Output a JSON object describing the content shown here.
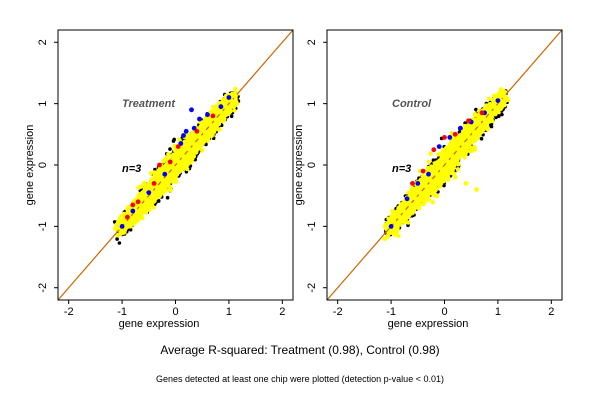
{
  "figure": {
    "caption": "Average R-squared: Treatment (0.98), Control (0.98)",
    "subcaption": "Genes detected at least one chip were plotted (detection p-value < 0.01)"
  },
  "colors": {
    "point_main": "#ffff00",
    "point_high": "#0000ff",
    "point_mid": "#ff0000",
    "point_low": "#000000",
    "diagonal": "#cc6600",
    "frame": "#000000",
    "panel_label": "#555555"
  },
  "chart_data": [
    {
      "type": "scatter",
      "title": "Treatment",
      "annotation": "n=3",
      "xlabel": "gene expression",
      "ylabel": "gene expression",
      "xlim": [
        -2.2,
        2.2
      ],
      "ylim": [
        -2.2,
        2.2
      ],
      "xticks": [
        "-2",
        "-1",
        "0",
        "1",
        "2"
      ],
      "yticks": [
        "-2",
        "-1",
        "0",
        "1",
        "2"
      ],
      "reference_line": {
        "slope": 1,
        "intercept": 0
      },
      "series": [
        {
          "color": "#ffff00",
          "x": [
            -1.05,
            -0.95,
            -0.85,
            -0.75,
            -0.65,
            -0.55,
            -0.45,
            -0.35,
            -0.25,
            -0.15,
            -0.05,
            0.05,
            0.15,
            0.25,
            0.35,
            0.45,
            0.55,
            0.65,
            0.75,
            0.85,
            0.95,
            1.05,
            1.12
          ],
          "y": [
            -1.02,
            -0.93,
            -0.86,
            -0.74,
            -0.66,
            -0.56,
            -0.44,
            -0.36,
            -0.24,
            -0.16,
            -0.04,
            0.06,
            0.14,
            0.26,
            0.34,
            0.46,
            0.54,
            0.66,
            0.74,
            0.86,
            0.94,
            1.04,
            1.12
          ]
        },
        {
          "color": "#0000ff",
          "x": [
            -1.0,
            -0.8,
            -0.5,
            -0.2,
            0.1,
            0.2,
            0.35,
            0.45,
            0.6,
            0.85,
            1.0,
            0.3,
            0.15
          ],
          "y": [
            -1.0,
            -0.75,
            -0.45,
            -0.15,
            0.35,
            0.55,
            0.6,
            0.75,
            0.82,
            0.95,
            1.1,
            0.9,
            0.48
          ]
        },
        {
          "color": "#ff0000",
          "x": [
            -0.9,
            -0.7,
            -0.4,
            -0.1,
            0.05,
            -0.3,
            0.4,
            0.7,
            -0.8
          ],
          "y": [
            -0.85,
            -0.6,
            -0.3,
            0.05,
            0.3,
            0.0,
            0.55,
            0.8,
            -0.65
          ]
        }
      ]
    },
    {
      "type": "scatter",
      "title": "Control",
      "annotation": "n=3",
      "xlabel": "gene expression",
      "ylabel": "gene expression",
      "xlim": [
        -2.2,
        2.2
      ],
      "ylim": [
        -2.2,
        2.2
      ],
      "xticks": [
        "-2",
        "-1",
        "0",
        "1",
        "2"
      ],
      "yticks": [
        "-2",
        "-1",
        "0",
        "1",
        "2"
      ],
      "reference_line": {
        "slope": 1,
        "intercept": 0
      },
      "series": [
        {
          "color": "#ffff00",
          "x": [
            -1.05,
            -0.95,
            -0.85,
            -0.75,
            -0.65,
            -0.55,
            -0.45,
            -0.35,
            -0.25,
            -0.15,
            -0.05,
            0.05,
            0.15,
            0.25,
            0.35,
            0.45,
            0.55,
            0.65,
            0.75,
            0.85,
            0.95,
            1.05,
            1.12,
            0.2,
            0.4,
            0.6
          ],
          "y": [
            -1.0,
            -0.92,
            -0.84,
            -0.76,
            -0.64,
            -0.54,
            -0.46,
            -0.34,
            -0.26,
            -0.14,
            -0.06,
            0.06,
            0.14,
            0.26,
            0.34,
            0.46,
            0.54,
            0.66,
            0.74,
            0.86,
            0.94,
            1.04,
            1.12,
            -0.2,
            -0.3,
            -0.4
          ]
        },
        {
          "color": "#0000ff",
          "x": [
            -1.0,
            -0.7,
            -0.5,
            -0.3,
            -0.1,
            0.1,
            0.3,
            0.5,
            0.75,
            1.0
          ],
          "y": [
            -1.0,
            -0.55,
            -0.3,
            -0.15,
            0.3,
            0.45,
            0.6,
            0.7,
            0.85,
            1.05
          ]
        },
        {
          "color": "#ff0000",
          "x": [
            -0.6,
            -0.4,
            -0.2,
            0.0,
            0.2,
            0.45,
            0.7
          ],
          "y": [
            -0.3,
            -0.1,
            0.25,
            0.45,
            0.5,
            0.72,
            0.85
          ]
        }
      ]
    }
  ]
}
